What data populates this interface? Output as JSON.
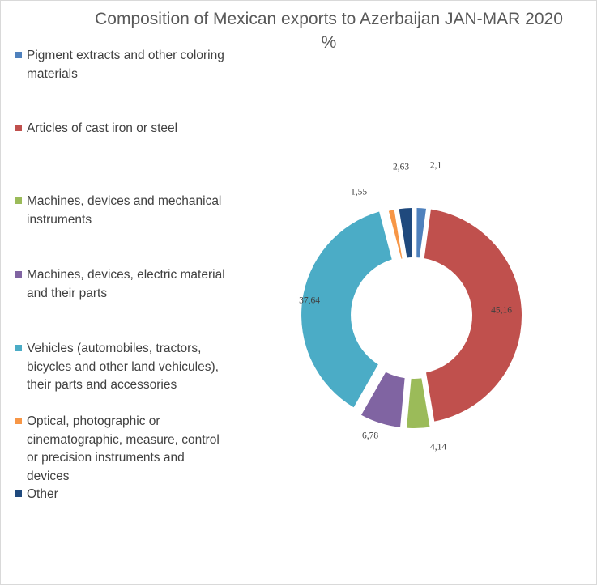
{
  "chart_data": {
    "type": "pie",
    "variant": "doughnut",
    "title": "Composition of Mexican exports to Azerbaijan JAN-MAR 2020",
    "subtitle": "%",
    "legend_position": "left",
    "series": [
      {
        "categories": [
          "Pigment extracts and other coloring materials",
          "Articles of cast iron or steel",
          "Machines, devices and mechanical instruments",
          "Machines, devices, electric material and their parts",
          "Vehicles (automobiles, tractors, bicycles and other land vehicules), their parts and accessories",
          "Optical, photographic or cinematographic, measure, control or precision instruments and devices",
          "Other"
        ],
        "values": [
          2.1,
          45.16,
          4.14,
          6.78,
          37.64,
          1.55,
          2.63
        ],
        "value_labels": [
          "2,1",
          "45,16",
          "4,14",
          "6,78",
          "37,64",
          "1,55",
          "2,63"
        ],
        "colors": [
          "#4f81bd",
          "#c0504d",
          "#9bbb59",
          "#8064a2",
          "#4bacc6",
          "#f79646",
          "#1f497d"
        ]
      }
    ]
  }
}
